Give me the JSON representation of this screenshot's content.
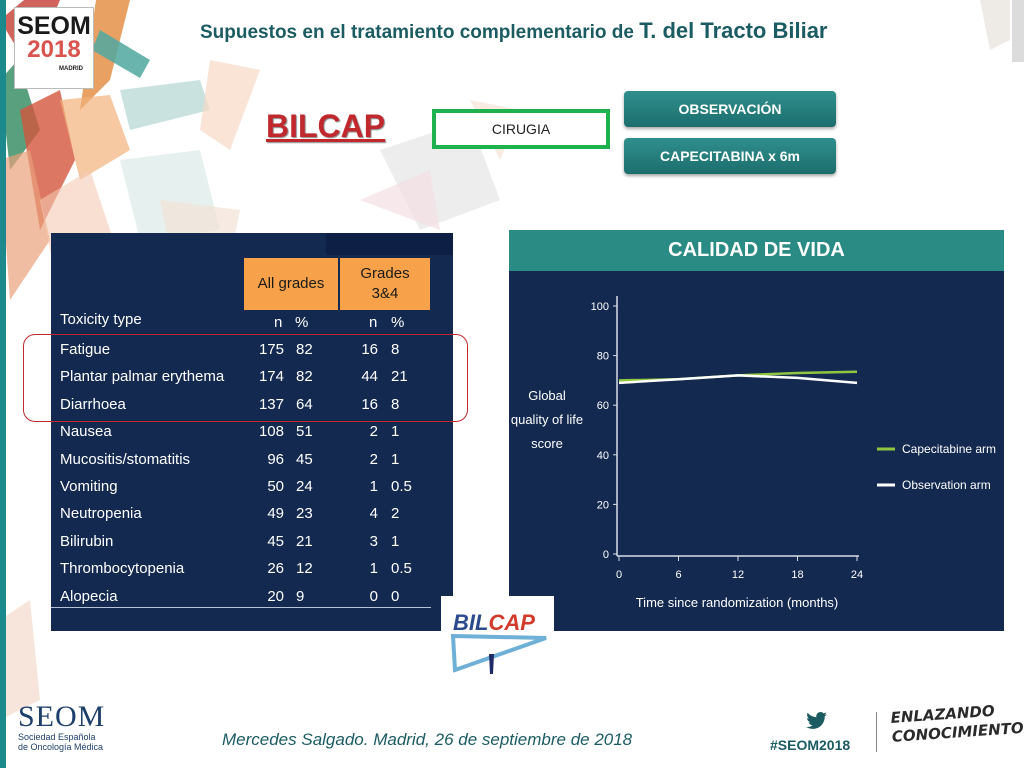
{
  "header": {
    "logo": {
      "brand": "SEOM",
      "year": "2018",
      "city": "MADRID"
    },
    "title_part1": "Supuestos en el tratamiento complementario de ",
    "title_part2": "T. del Tracto Biliar"
  },
  "trial": {
    "name": "BILCAP",
    "surgery_label": "CIRUGIA",
    "arms": [
      "OBSERVACIÓN",
      "CAPECITABINA x  6m"
    ]
  },
  "toxicity_table": {
    "group_headers": [
      "All grades",
      "Grades 3&4"
    ],
    "column_label": "Toxicity type",
    "subheaders": [
      "n",
      "%",
      "n",
      "%"
    ],
    "rows": [
      {
        "type": "Fatigue",
        "all_n": "175",
        "all_pct": "82",
        "g34_n": "16",
        "g34_pct": "8"
      },
      {
        "type": "Plantar palmar erythema",
        "all_n": "174",
        "all_pct": "82",
        "g34_n": "44",
        "g34_pct": "21"
      },
      {
        "type": "Diarrhoea",
        "all_n": "137",
        "all_pct": "64",
        "g34_n": "16",
        "g34_pct": "8"
      },
      {
        "type": "Nausea",
        "all_n": "108",
        "all_pct": "51",
        "g34_n": "2",
        "g34_pct": "1"
      },
      {
        "type": "Mucositis/stomatitis",
        "all_n": "96",
        "all_pct": "45",
        "g34_n": "2",
        "g34_pct": "1"
      },
      {
        "type": "Vomiting",
        "all_n": "50",
        "all_pct": "24",
        "g34_n": "1",
        "g34_pct": "0.5"
      },
      {
        "type": "Neutropenia",
        "all_n": "49",
        "all_pct": "23",
        "g34_n": "4",
        "g34_pct": "2"
      },
      {
        "type": "Bilirubin",
        "all_n": "45",
        "all_pct": "21",
        "g34_n": "3",
        "g34_pct": "1"
      },
      {
        "type": "Thrombocytopenia",
        "all_n": "26",
        "all_pct": "12",
        "g34_n": "1",
        "g34_pct": "0.5"
      },
      {
        "type": "Alopecia",
        "all_n": "20",
        "all_pct": "9",
        "g34_n": "0",
        "g34_pct": "0"
      }
    ]
  },
  "qol_panel_title": "CALIDAD DE VIDA",
  "chart_data": {
    "type": "line",
    "title": "",
    "xlabel": "Time since randomization (months)",
    "ylabel_lines": [
      "Global",
      "quality of life",
      "score"
    ],
    "x": [
      0,
      6,
      12,
      18,
      24
    ],
    "xticks": [
      "0",
      "6",
      "12",
      "18",
      "24"
    ],
    "yticks": [
      "0",
      "20",
      "40",
      "60",
      "80",
      "100"
    ],
    "xlim": [
      0,
      24
    ],
    "ylim": [
      0,
      100
    ],
    "grid": false,
    "legend_position": "right",
    "series": [
      {
        "name": "Capecitabine arm",
        "color": "#8fc63f",
        "values": [
          70,
          70.5,
          72,
          73,
          73.5
        ]
      },
      {
        "name": "Observation arm",
        "color": "#ffffff",
        "values": [
          69,
          70.5,
          72,
          71,
          69
        ]
      }
    ]
  },
  "bilcap_logo": {
    "part1": "BIL",
    "part2": "CAP"
  },
  "footer": {
    "org_name": "SEOM",
    "org_full_line1": "Sociedad Española",
    "org_full_line2": "de Oncología Médica",
    "credit": "Mercedes Salgado. Madrid, 26 de septiembre de 2018",
    "hashtag": "#SEOM2018",
    "tagline_line1": "ENLAZANDO",
    "tagline_line2": "CONOCIMIENTO"
  },
  "colors": {
    "title": "#1b5c63",
    "trial_name": "#c0282d",
    "surgery_border": "#1db24e",
    "arm_button": "#2a8a84",
    "panel_background": "#13294f",
    "table_header": "#f7a24a",
    "capecitabine": "#8fc63f",
    "observation": "#ffffff"
  },
  "icons": [
    "twitter-icon"
  ]
}
